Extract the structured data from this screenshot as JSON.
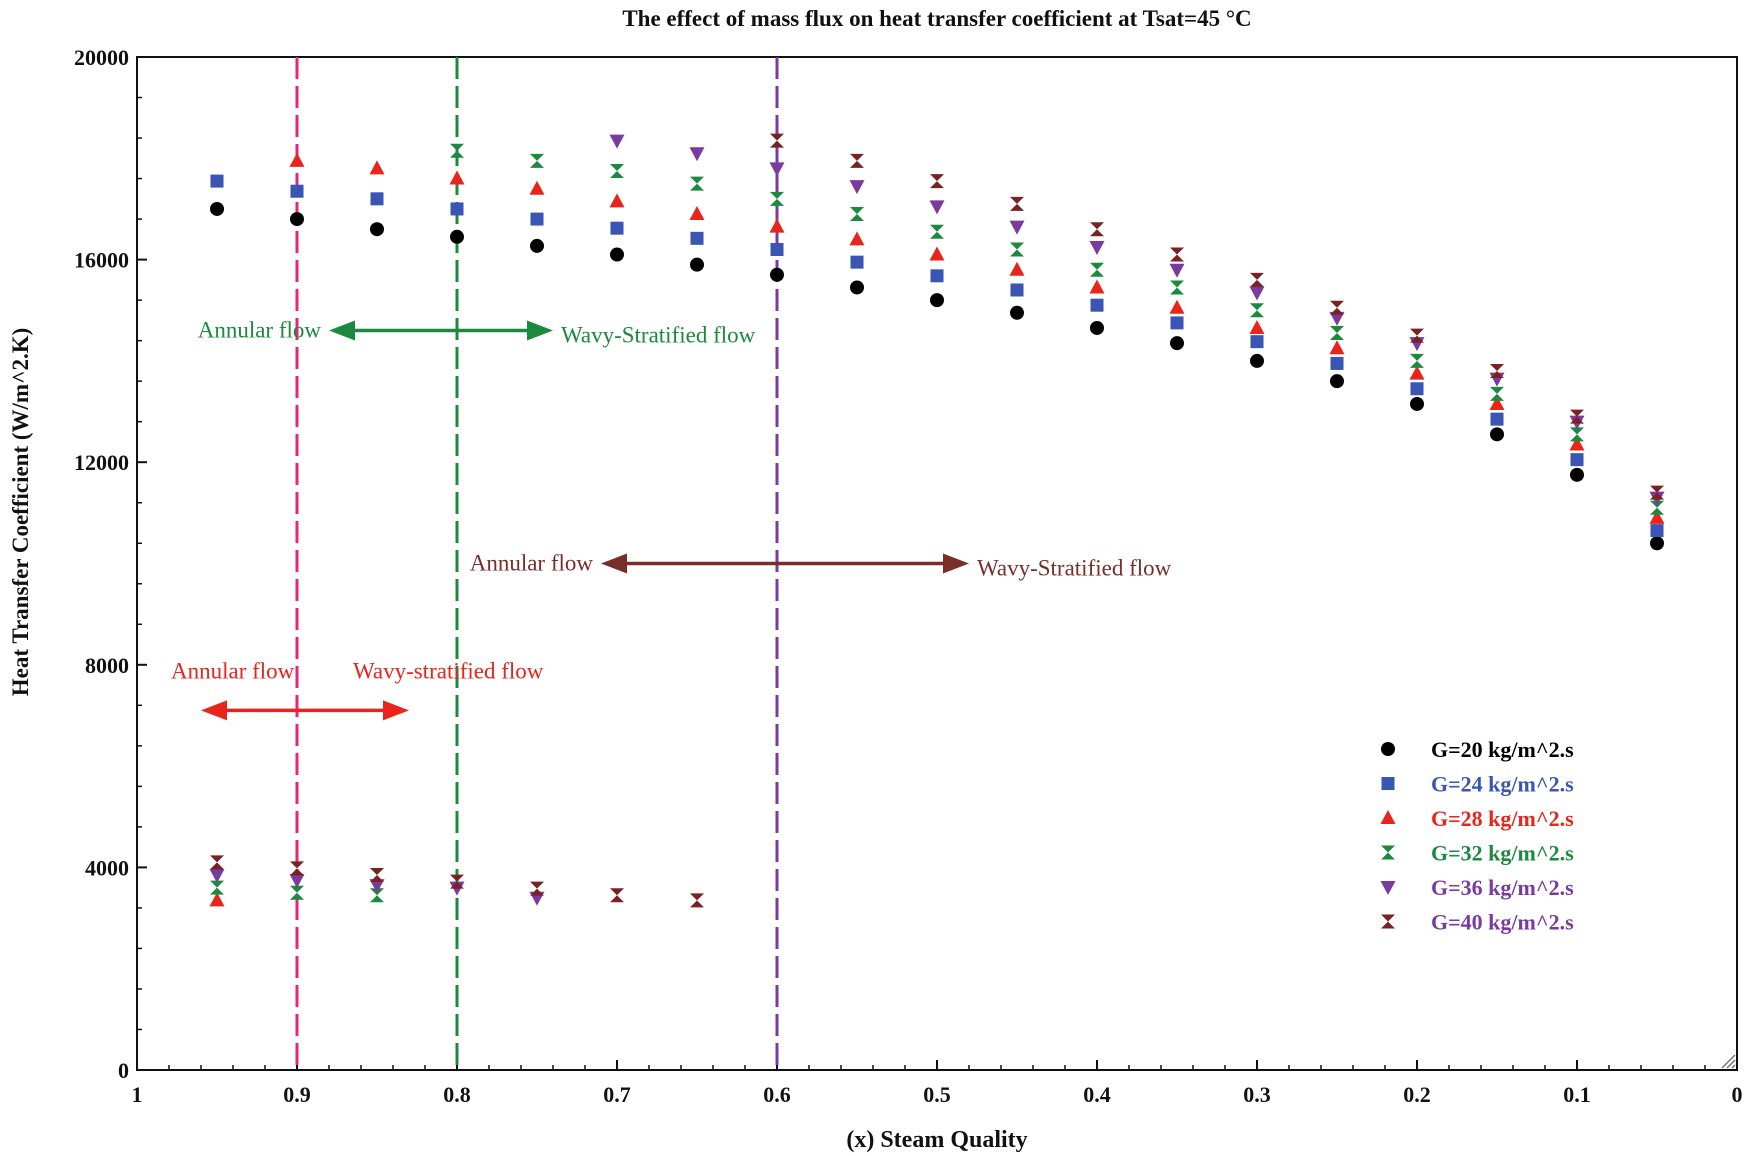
{
  "chart_data": {
    "type": "scatter",
    "title": "The effect of mass flux on heat transfer coefficient at Tsat=45 °C",
    "xlabel": "(x) Steam Quality",
    "ylabel": "Heat Transfer Coefficient (W/m^2.K)",
    "xlim": [
      1,
      0
    ],
    "ylim": [
      0,
      20000
    ],
    "x_ticks": [
      1,
      0.9,
      0.8,
      0.7,
      0.6,
      0.5,
      0.4,
      0.3,
      0.2,
      0.1,
      0
    ],
    "x_tick_labels": [
      "1",
      "0.9",
      "0.8",
      "0.7",
      "0.6",
      "0.5",
      "0.4",
      "0.3",
      "0.2",
      "0.1",
      "0"
    ],
    "y_ticks": [
      0,
      4000,
      8000,
      12000,
      16000,
      20000
    ],
    "y_tick_labels": [
      "0",
      "4000",
      "8000",
      "12000",
      "16000",
      "20000"
    ],
    "legend_position": "bottom-right",
    "series": [
      {
        "name": "G=20 kg/m^2.s",
        "marker": "circle",
        "color": "#000000",
        "label_color": "#000000",
        "points": [
          [
            0.95,
            17000
          ],
          [
            0.9,
            16800
          ],
          [
            0.85,
            16600
          ],
          [
            0.8,
            16450
          ],
          [
            0.75,
            16270
          ],
          [
            0.7,
            16100
          ],
          [
            0.65,
            15900
          ],
          [
            0.6,
            15700
          ],
          [
            0.55,
            15450
          ],
          [
            0.5,
            15200
          ],
          [
            0.45,
            14950
          ],
          [
            0.4,
            14650
          ],
          [
            0.35,
            14350
          ],
          [
            0.3,
            14000
          ],
          [
            0.25,
            13600
          ],
          [
            0.2,
            13150
          ],
          [
            0.15,
            12550
          ],
          [
            0.1,
            11750
          ],
          [
            0.05,
            10400
          ]
        ]
      },
      {
        "name": "G=24 kg/m^2.s",
        "marker": "square",
        "color": "#3a55b4",
        "label_color": "#3a55b4",
        "points": [
          [
            0.95,
            17550
          ],
          [
            0.9,
            17350
          ],
          [
            0.85,
            17200
          ],
          [
            0.8,
            17000
          ],
          [
            0.75,
            16800
          ],
          [
            0.7,
            16620
          ],
          [
            0.65,
            16420
          ],
          [
            0.6,
            16200
          ],
          [
            0.55,
            15950
          ],
          [
            0.5,
            15680
          ],
          [
            0.45,
            15400
          ],
          [
            0.4,
            15100
          ],
          [
            0.35,
            14750
          ],
          [
            0.3,
            14380
          ],
          [
            0.25,
            13950
          ],
          [
            0.2,
            13450
          ],
          [
            0.15,
            12850
          ],
          [
            0.1,
            12050
          ],
          [
            0.05,
            10650
          ]
        ]
      },
      {
        "name": "G=28 kg/m^2.s",
        "marker": "triangle-up",
        "color": "#e8241c",
        "label_color": "#e8241c",
        "points": [
          [
            0.95,
            3350
          ],
          [
            0.9,
            17950
          ],
          [
            0.85,
            17800
          ],
          [
            0.8,
            17600
          ],
          [
            0.75,
            17400
          ],
          [
            0.7,
            17150
          ],
          [
            0.65,
            16900
          ],
          [
            0.6,
            16650
          ],
          [
            0.55,
            16400
          ],
          [
            0.5,
            16100
          ],
          [
            0.45,
            15800
          ],
          [
            0.4,
            15450
          ],
          [
            0.35,
            15050
          ],
          [
            0.3,
            14650
          ],
          [
            0.25,
            14250
          ],
          [
            0.2,
            13750
          ],
          [
            0.15,
            13150
          ],
          [
            0.1,
            12350
          ],
          [
            0.05,
            10900
          ]
        ]
      },
      {
        "name": "G=32 kg/m^2.s",
        "marker": "bowtie",
        "color": "#1b8a3e",
        "label_color": "#1b8a3e",
        "points": [
          [
            0.95,
            3600
          ],
          [
            0.9,
            3500
          ],
          [
            0.85,
            3450
          ],
          [
            0.8,
            18150
          ],
          [
            0.75,
            17950
          ],
          [
            0.7,
            17750
          ],
          [
            0.65,
            17500
          ],
          [
            0.6,
            17200
          ],
          [
            0.55,
            16900
          ],
          [
            0.5,
            16550
          ],
          [
            0.45,
            16200
          ],
          [
            0.4,
            15800
          ],
          [
            0.35,
            15450
          ],
          [
            0.3,
            15000
          ],
          [
            0.25,
            14550
          ],
          [
            0.2,
            14000
          ],
          [
            0.15,
            13350
          ],
          [
            0.1,
            12550
          ],
          [
            0.05,
            11100
          ]
        ]
      },
      {
        "name": "G=36 kg/m^2.s",
        "marker": "triangle-down",
        "color": "#7b3a9e",
        "label_color": "#7b3a9e",
        "points": [
          [
            0.95,
            3850
          ],
          [
            0.9,
            3750
          ],
          [
            0.85,
            3650
          ],
          [
            0.8,
            3600
          ],
          [
            0.75,
            3400
          ],
          [
            0.7,
            18350
          ],
          [
            0.65,
            18100
          ],
          [
            0.6,
            17800
          ],
          [
            0.55,
            17450
          ],
          [
            0.5,
            17050
          ],
          [
            0.45,
            16650
          ],
          [
            0.4,
            16250
          ],
          [
            0.35,
            15800
          ],
          [
            0.3,
            15350
          ],
          [
            0.25,
            14850
          ],
          [
            0.2,
            14350
          ],
          [
            0.15,
            13650
          ],
          [
            0.1,
            12800
          ],
          [
            0.05,
            11300
          ]
        ]
      },
      {
        "name": "G=40 kg/m^2.s",
        "marker": "hourglass",
        "color": "#7a2222",
        "label_color": "#7b3a9e",
        "points": [
          [
            0.95,
            4100
          ],
          [
            0.9,
            3980
          ],
          [
            0.85,
            3850
          ],
          [
            0.8,
            3720
          ],
          [
            0.75,
            3580
          ],
          [
            0.7,
            3450
          ],
          [
            0.65,
            3350
          ],
          [
            0.6,
            18350
          ],
          [
            0.55,
            17950
          ],
          [
            0.5,
            17550
          ],
          [
            0.45,
            17100
          ],
          [
            0.4,
            16600
          ],
          [
            0.35,
            16100
          ],
          [
            0.3,
            15600
          ],
          [
            0.25,
            15050
          ],
          [
            0.2,
            14500
          ],
          [
            0.15,
            13800
          ],
          [
            0.1,
            12900
          ],
          [
            0.05,
            11400
          ]
        ]
      }
    ],
    "vertical_lines": [
      {
        "x": 0.9,
        "color": "#e8257a",
        "style": "dashed"
      },
      {
        "x": 0.8,
        "color": "#1b8a3e",
        "style": "dashed"
      },
      {
        "x": 0.6,
        "color": "#7b3a9e",
        "style": "dashed"
      }
    ],
    "annotations": [
      {
        "left_label": "Annular flow",
        "right_label": "Wavy-Stratified flow",
        "color": "#1b8a3e",
        "x_from": 0.88,
        "x_to": 0.74,
        "y": 14600
      },
      {
        "left_label": "Annular flow",
        "right_label": "Wavy-Stratified flow",
        "color": "#7a2e2a",
        "x_from": 0.71,
        "x_to": 0.48,
        "y": 10000
      },
      {
        "left_label": "Annular flow",
        "right_label": "Wavy-stratified flow",
        "color": "#e8241c",
        "x_from": 0.96,
        "x_to": 0.83,
        "y": 7100
      }
    ]
  }
}
